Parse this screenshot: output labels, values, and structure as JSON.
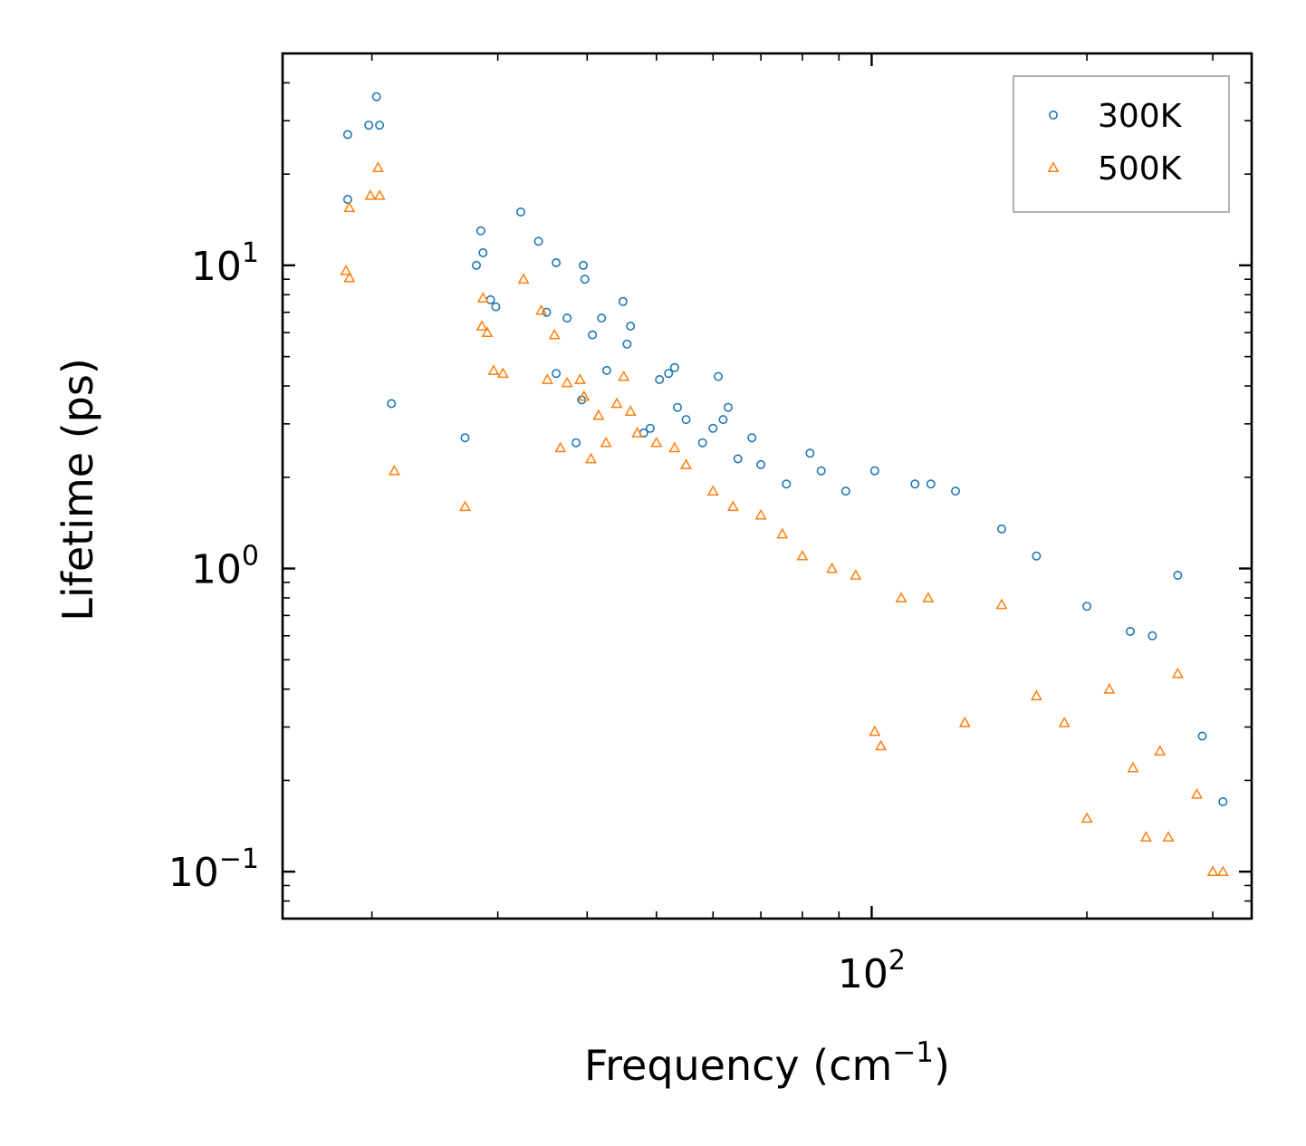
{
  "chart_data": {
    "type": "scatter",
    "xscale": "log",
    "yscale": "log",
    "xlim": [
      15,
      340
    ],
    "ylim": [
      0.07,
      50
    ],
    "xlabel": "Frequency (cm",
    "xlabel_sup": "−1",
    "xlabel_end": ")",
    "ylabel": "Lifetime (ps)",
    "xticks": [
      {
        "base": "10",
        "exp": "2",
        "value": 100
      }
    ],
    "yticks": [
      {
        "base": "10",
        "exp": "−1",
        "value": 0.1
      },
      {
        "base": "10",
        "exp": "0",
        "value": 1
      },
      {
        "base": "10",
        "exp": "1",
        "value": 10
      }
    ],
    "legend_position": "top-right",
    "series": [
      {
        "name": "300K",
        "marker": "circle",
        "color": "#1f77b4",
        "points": [
          [
            18.5,
            16.5
          ],
          [
            18.5,
            27
          ],
          [
            19.8,
            29
          ],
          [
            20.5,
            29
          ],
          [
            20.3,
            36
          ],
          [
            21.3,
            3.5
          ],
          [
            27,
            2.7
          ],
          [
            28,
            10
          ],
          [
            28.4,
            13
          ],
          [
            28.6,
            11
          ],
          [
            29.3,
            7.7
          ],
          [
            29.8,
            7.3
          ],
          [
            32.3,
            15
          ],
          [
            34.2,
            12
          ],
          [
            35.1,
            7
          ],
          [
            36.2,
            10.2
          ],
          [
            36.2,
            4.4
          ],
          [
            37.5,
            6.7
          ],
          [
            38.6,
            2.6
          ],
          [
            39.3,
            3.6
          ],
          [
            39.5,
            10
          ],
          [
            39.7,
            9
          ],
          [
            40.7,
            5.9
          ],
          [
            41.9,
            6.7
          ],
          [
            42.6,
            4.5
          ],
          [
            44.9,
            7.6
          ],
          [
            45.5,
            5.5
          ],
          [
            46,
            6.3
          ],
          [
            48,
            2.8
          ],
          [
            49,
            2.9
          ],
          [
            50.5,
            4.2
          ],
          [
            52,
            4.4
          ],
          [
            53,
            4.6
          ],
          [
            53.5,
            3.4
          ],
          [
            55,
            3.1
          ],
          [
            58,
            2.6
          ],
          [
            60,
            2.9
          ],
          [
            61,
            4.3
          ],
          [
            62,
            3.1
          ],
          [
            63,
            3.4
          ],
          [
            65,
            2.3
          ],
          [
            68,
            2.7
          ],
          [
            70,
            2.2
          ],
          [
            76,
            1.9
          ],
          [
            82,
            2.4
          ],
          [
            85,
            2.1
          ],
          [
            92,
            1.8
          ],
          [
            101,
            2.1
          ],
          [
            115,
            1.9
          ],
          [
            121,
            1.9
          ],
          [
            131,
            1.8
          ],
          [
            152,
            1.35
          ],
          [
            170,
            1.1
          ],
          [
            200,
            0.75
          ],
          [
            230,
            0.62
          ],
          [
            247,
            0.6
          ],
          [
            268,
            0.95
          ],
          [
            290,
            0.28
          ],
          [
            310,
            0.17
          ]
        ]
      },
      {
        "name": "500K",
        "marker": "triangle",
        "color": "#ff7f0e",
        "points": [
          [
            18.4,
            9.6
          ],
          [
            18.6,
            9.1
          ],
          [
            18.6,
            15.5
          ],
          [
            19.9,
            17
          ],
          [
            20.5,
            17
          ],
          [
            20.4,
            21
          ],
          [
            21.5,
            2.1
          ],
          [
            27,
            1.6
          ],
          [
            28.5,
            6.3
          ],
          [
            28.6,
            7.8
          ],
          [
            29,
            6
          ],
          [
            29.6,
            4.5
          ],
          [
            30.5,
            4.4
          ],
          [
            32.6,
            9
          ],
          [
            34.5,
            7.1
          ],
          [
            35.2,
            4.2
          ],
          [
            36,
            5.9
          ],
          [
            36.7,
            2.5
          ],
          [
            37.5,
            4.1
          ],
          [
            39.1,
            4.2
          ],
          [
            39.6,
            3.7
          ],
          [
            40.5,
            2.3
          ],
          [
            41.5,
            3.2
          ],
          [
            42.5,
            2.6
          ],
          [
            44,
            3.5
          ],
          [
            45,
            4.3
          ],
          [
            46,
            3.3
          ],
          [
            47,
            2.8
          ],
          [
            50,
            2.6
          ],
          [
            53,
            2.5
          ],
          [
            55,
            2.2
          ],
          [
            60,
            1.8
          ],
          [
            64,
            1.6
          ],
          [
            70,
            1.5
          ],
          [
            75,
            1.3
          ],
          [
            80,
            1.1
          ],
          [
            88,
            1.0
          ],
          [
            95,
            0.95
          ],
          [
            101,
            0.29
          ],
          [
            103,
            0.26
          ],
          [
            110,
            0.8
          ],
          [
            120,
            0.8
          ],
          [
            135,
            0.31
          ],
          [
            152,
            0.76
          ],
          [
            170,
            0.38
          ],
          [
            186,
            0.31
          ],
          [
            200,
            0.15
          ],
          [
            215,
            0.4
          ],
          [
            232,
            0.22
          ],
          [
            242,
            0.13
          ],
          [
            253,
            0.25
          ],
          [
            260,
            0.13
          ],
          [
            268,
            0.45
          ],
          [
            285,
            0.18
          ],
          [
            300,
            0.1
          ],
          [
            310,
            0.1
          ]
        ]
      }
    ]
  }
}
